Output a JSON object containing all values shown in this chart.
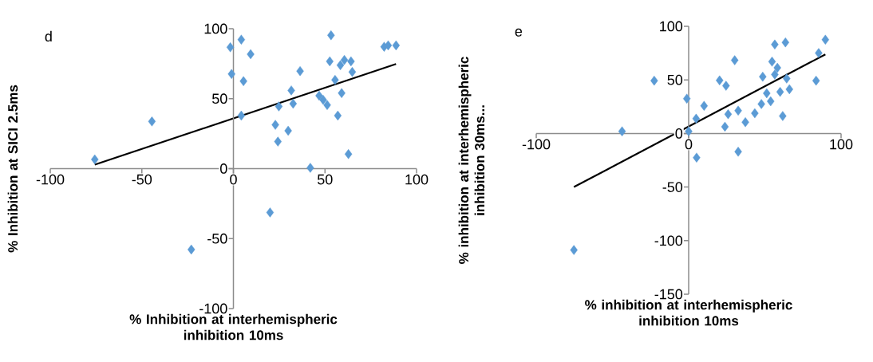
{
  "chart_data": [
    {
      "type": "scatter",
      "title": "d",
      "xlabel": "% Inhibition at interhemispheric inhibition 10ms",
      "ylabel": "% Inhibition at SICI 2.5ms",
      "xlim": [
        -100,
        100
      ],
      "ylim": [
        -100,
        100
      ],
      "xticks": [
        -100,
        -50,
        0,
        50,
        100
      ],
      "yticks": [
        -100,
        -50,
        0,
        50,
        100
      ],
      "series": [
        {
          "type": "scatter",
          "marker": "diamond",
          "color": "#5b9bd5",
          "x": [
            -75.7,
            -44.5,
            -23,
            -1.7,
            -1,
            4.3,
            5.5,
            9.4,
            4.3,
            36.4,
            31.6,
            32.6,
            24.8,
            22.9,
            29.9,
            24.3,
            20,
            42,
            53.3,
            52.6,
            58.4,
            60.6,
            64.2,
            55.5,
            59.1,
            46.8,
            49,
            51.2,
            57,
            62.8,
            64.9,
            82.3,
            84.5,
            88.8
          ],
          "values": [
            6.6,
            33.7,
            -57.8,
            86.7,
            67.6,
            92.2,
            62.5,
            81.8,
            37.9,
            69.7,
            55.9,
            46.4,
            44.5,
            31.3,
            27.1,
            19.3,
            -31.3,
            0.6,
            95.3,
            76.7,
            73.9,
            77.7,
            76.7,
            63.4,
            54,
            52.1,
            49.2,
            45.5,
            37.9,
            10.4,
            69.1,
            87.1,
            88.1,
            88.1
          ]
        },
        {
          "type": "line",
          "color": "#000000",
          "x": [
            -75.7,
            88.8
          ],
          "values": [
            2.8,
            74.8
          ]
        }
      ]
    },
    {
      "type": "scatter",
      "title": "e",
      "xlabel": "% inhibition at interhemispheric inhibition 10ms",
      "ylabel": "% inhibition at interhemispheric inhibition 30ms...",
      "xlim": [
        -100,
        100
      ],
      "ylim": [
        -150,
        100
      ],
      "xticks": [
        -100,
        0,
        100
      ],
      "yticks": [
        -150,
        -100,
        -50,
        0,
        50,
        100
      ],
      "series": [
        {
          "type": "scatter",
          "marker": "diamond",
          "color": "#5b9bd5",
          "x": [
            -75.3,
            -43.7,
            -22.6,
            -1.2,
            0,
            4.9,
            5.2,
            10.1,
            20.3,
            24.5,
            23.8,
            25.9,
            32.5,
            32.5,
            30.2,
            37.2,
            43.4,
            48.6,
            47.7,
            51.2,
            53.8,
            54.7,
            58.2,
            56.5,
            63.5,
            56.5,
            60,
            64.3,
            66.1,
            61.7,
            83.6,
            85.3,
            89.7
          ],
          "values": [
            -108.8,
            2,
            49.3,
            32.5,
            2,
            13.8,
            -22.5,
            25.8,
            49.5,
            44.5,
            6.3,
            18,
            21.3,
            -17,
            68.3,
            10.5,
            18.8,
            53,
            27.5,
            37.5,
            30,
            67,
            61.3,
            83,
            85,
            55,
            38.8,
            51.3,
            41.3,
            16.3,
            49.3,
            75,
            87.5
          ]
        },
        {
          "type": "line",
          "color": "#000000",
          "x": [
            -75.3,
            89.7
          ],
          "values": [
            -50,
            73.8
          ]
        }
      ]
    }
  ]
}
